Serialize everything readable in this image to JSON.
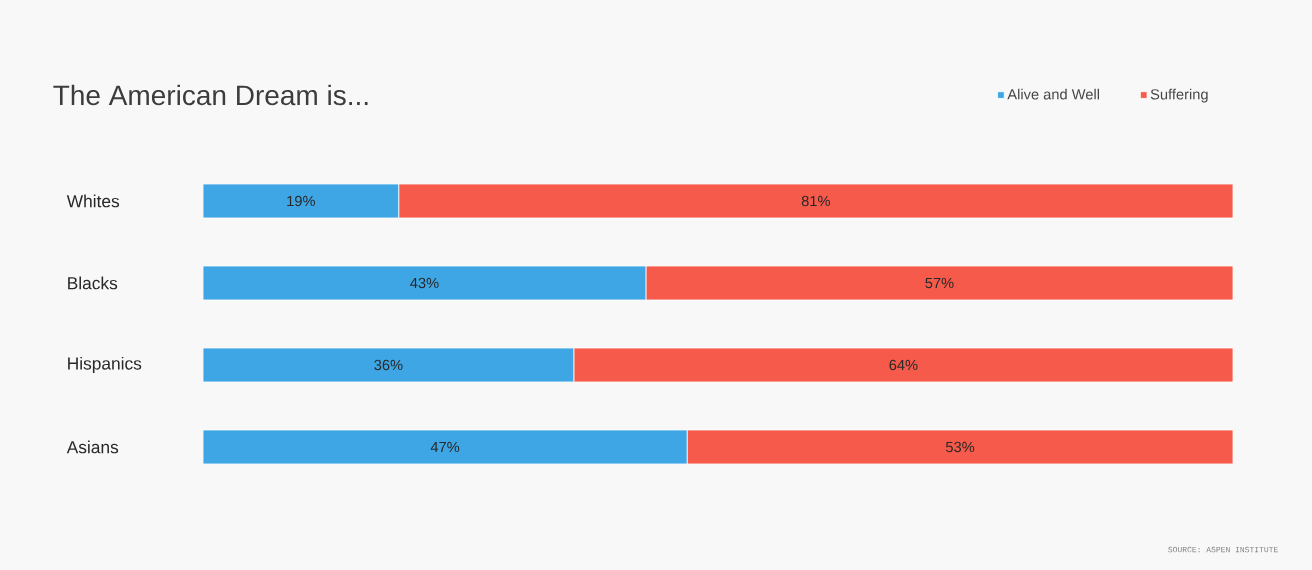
{
  "chart_data": {
    "type": "bar",
    "orientation": "horizontal",
    "stacked": true,
    "title": "The American Dream is...",
    "categories": [
      "Whites",
      "Blacks",
      "Hispanics",
      "Asians"
    ],
    "series": [
      {
        "name": "Alive and Well",
        "color": "#3ea6e4",
        "values": [
          19,
          43,
          36,
          47
        ],
        "value_labels": [
          "19%",
          "43%",
          "36%",
          "47%"
        ]
      },
      {
        "name": "Suffering",
        "color": "#f55a4a",
        "values": [
          81,
          57,
          64,
          53
        ],
        "value_labels": [
          "81%",
          "57%",
          "64%",
          "53%"
        ]
      }
    ],
    "xlim": [
      0,
      100
    ],
    "tick_labels": "y",
    "legend": "top right",
    "annotations": [
      "SOURCE: ASPEN INSTITUTE"
    ]
  }
}
